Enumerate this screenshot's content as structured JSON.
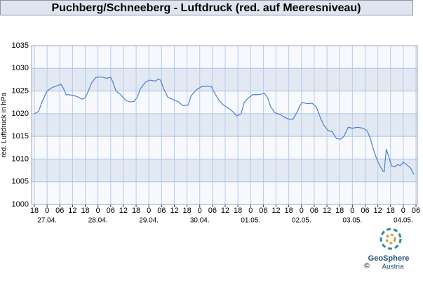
{
  "chart_data": {
    "type": "line",
    "title": "Puchberg/Schneeberg - Luftdruck (red. auf Meeresniveau)",
    "y_label": "red. Luftdruck in hPa",
    "xlim": [
      0,
      180
    ],
    "xticks": [
      {
        "value": 0,
        "label": "18"
      },
      {
        "value": 6,
        "label": "0"
      },
      {
        "value": 12,
        "label": "06"
      },
      {
        "value": 18,
        "label": "12"
      },
      {
        "value": 24,
        "label": "18"
      },
      {
        "value": 30,
        "label": "0"
      },
      {
        "value": 36,
        "label": "06"
      },
      {
        "value": 42,
        "label": "12"
      },
      {
        "value": 48,
        "label": "18"
      },
      {
        "value": 54,
        "label": "0"
      },
      {
        "value": 60,
        "label": "06"
      },
      {
        "value": 66,
        "label": "12"
      },
      {
        "value": 72,
        "label": "18"
      },
      {
        "value": 78,
        "label": "0"
      },
      {
        "value": 84,
        "label": "06"
      },
      {
        "value": 90,
        "label": "12"
      },
      {
        "value": 96,
        "label": "18"
      },
      {
        "value": 102,
        "label": "0"
      },
      {
        "value": 108,
        "label": "06"
      },
      {
        "value": 114,
        "label": "12"
      },
      {
        "value": 120,
        "label": "18"
      },
      {
        "value": 126,
        "label": "0"
      },
      {
        "value": 132,
        "label": "06"
      },
      {
        "value": 138,
        "label": "12"
      },
      {
        "value": 144,
        "label": "18"
      },
      {
        "value": 150,
        "label": "0"
      },
      {
        "value": 156,
        "label": "06"
      },
      {
        "value": 162,
        "label": "12"
      },
      {
        "value": 168,
        "label": "18"
      },
      {
        "value": 174,
        "label": "0"
      },
      {
        "value": 180,
        "label": "06"
      }
    ],
    "date_labels": [
      {
        "value": 6,
        "label": "27.04."
      },
      {
        "value": 30,
        "label": "28.04."
      },
      {
        "value": 54,
        "label": "29.04."
      },
      {
        "value": 78,
        "label": "30.04."
      },
      {
        "value": 102,
        "label": "01.05."
      },
      {
        "value": 126,
        "label": "02.05."
      },
      {
        "value": 150,
        "label": "03.05."
      },
      {
        "value": 174,
        "label": "04.05."
      }
    ],
    "ylim": [
      1000,
      1035
    ],
    "yticks": [
      1000,
      1005,
      1010,
      1015,
      1020,
      1025,
      1030,
      1035
    ],
    "grid": true,
    "shaded_bands": true,
    "series": [
      {
        "color": "#4a7fd4",
        "x": [
          0,
          2,
          3.5,
          6,
          8.5,
          11,
          12.5,
          13.5,
          15,
          18,
          20,
          22.5,
          24,
          25,
          27,
          29,
          32,
          34,
          36,
          37,
          38.5,
          40.5,
          43,
          45,
          47,
          48.5,
          50,
          52.5,
          54.5,
          57,
          58.5,
          59.5,
          61,
          63,
          66,
          68,
          70,
          72.5,
          74,
          76.5,
          79,
          81.5,
          83.5,
          84.5,
          87,
          89,
          91.5,
          93.5,
          95.5,
          97.5,
          99,
          101,
          103,
          105.5,
          107,
          108.5,
          110,
          111.5,
          113.5,
          116,
          118,
          120,
          122,
          123.5,
          125.5,
          126.5,
          128.5,
          131,
          133,
          135,
          136.5,
          138.5,
          140.5,
          142.5,
          144.5,
          146,
          148,
          150,
          152.5,
          155,
          157,
          158.5,
          160,
          161.5,
          163,
          164.5,
          165,
          166,
          167.5,
          168.5,
          170,
          171.5,
          172.5,
          174,
          175.5,
          177.5,
          179
        ],
        "values": [
          1020.0,
          1020.5,
          1022.5,
          1025.0,
          1025.8,
          1026.2,
          1026.5,
          1025.8,
          1024.2,
          1024.1,
          1023.8,
          1023.2,
          1023.5,
          1024.5,
          1026.8,
          1028.0,
          1028.1,
          1027.8,
          1028.0,
          1027.0,
          1025.0,
          1024.3,
          1023.0,
          1022.6,
          1022.7,
          1023.6,
          1025.5,
          1027.0,
          1027.4,
          1027.2,
          1027.6,
          1027.4,
          1025.5,
          1023.6,
          1023.0,
          1022.6,
          1021.8,
          1021.9,
          1024.0,
          1025.3,
          1026.0,
          1026.1,
          1026.0,
          1025.0,
          1023.0,
          1022.0,
          1021.2,
          1020.5,
          1019.5,
          1020.0,
          1022.5,
          1023.5,
          1024.2,
          1024.2,
          1024.3,
          1024.5,
          1023.5,
          1021.5,
          1020.2,
          1019.8,
          1019.2,
          1018.8,
          1018.8,
          1020.0,
          1022.0,
          1022.5,
          1022.2,
          1022.3,
          1021.5,
          1019.0,
          1017.5,
          1016.3,
          1016.0,
          1014.5,
          1014.4,
          1015.0,
          1017.0,
          1016.8,
          1017.0,
          1016.8,
          1016.2,
          1014.5,
          1012.0,
          1010.0,
          1008.5,
          1007.3,
          1007.2,
          1012.2,
          1010.0,
          1008.5,
          1008.3,
          1008.8,
          1008.5,
          1009.3,
          1008.8,
          1008.0,
          1006.6
        ]
      }
    ]
  },
  "logo": {
    "name": "GeoSphere",
    "sub": "Austria",
    "copyright": "©"
  }
}
